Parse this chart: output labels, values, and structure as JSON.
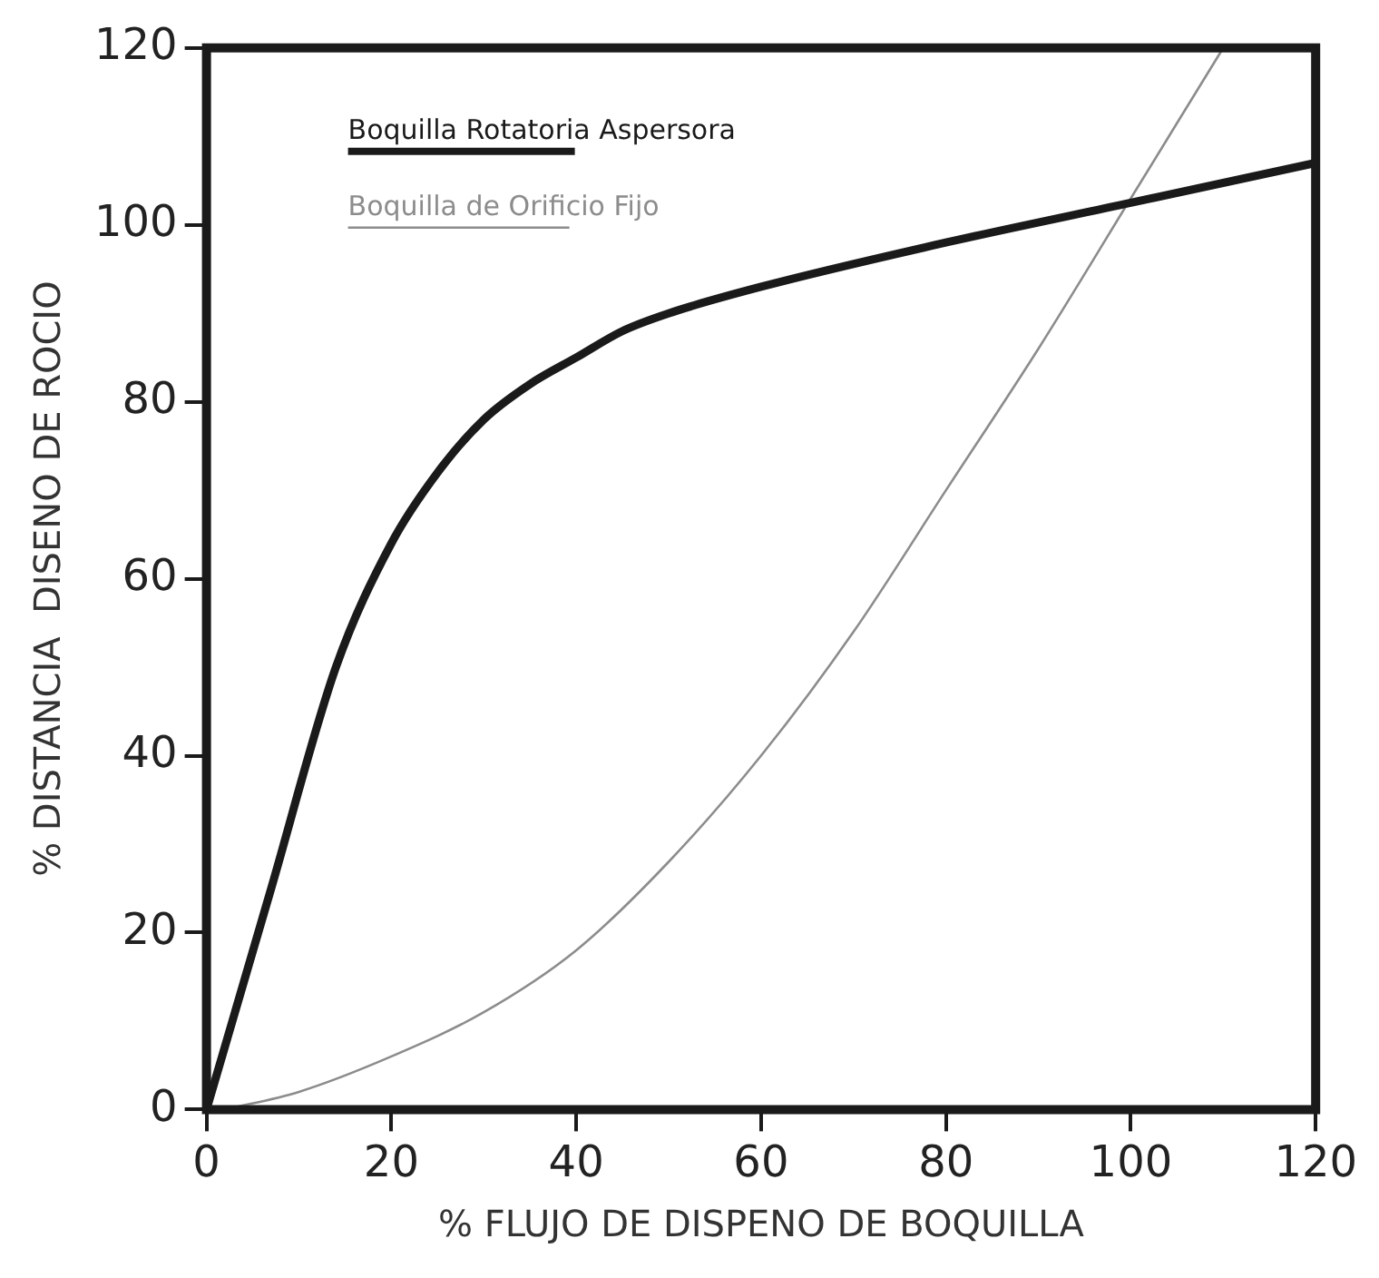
{
  "chart_data": {
    "type": "line",
    "xlabel": "% FLUJO DE DISPENO DE BOQUILLA",
    "ylabel": "% DISTANCIA  DISENO DE ROCIO",
    "xlim": [
      0,
      120
    ],
    "ylim": [
      0,
      120
    ],
    "xticks": [
      0,
      20,
      40,
      60,
      80,
      100,
      120
    ],
    "yticks": [
      0,
      20,
      40,
      60,
      80,
      100,
      120
    ],
    "grid": false,
    "legend": "top left",
    "marker": "none",
    "line_style": "solid",
    "series": [
      {
        "name": "Boquilla Rotatoria Aspersora",
        "color": "#1a1a1a",
        "x": [
          0,
          7,
          14,
          20,
          25,
          30,
          35,
          40,
          45,
          50,
          60,
          80,
          100,
          120
        ],
        "values": [
          0,
          25,
          50,
          64,
          72,
          78,
          82,
          85,
          88,
          90,
          93,
          98,
          102.5,
          107
        ]
      },
      {
        "name": "Boquilla de Orificio Fijo",
        "color": "#8c8c8c",
        "x": [
          2,
          10,
          20,
          30,
          40,
          50,
          60,
          70,
          80,
          90,
          100,
          110
        ],
        "values": [
          0,
          2,
          6,
          11,
          18,
          28,
          40,
          54,
          70,
          86,
          103,
          120
        ]
      }
    ]
  }
}
